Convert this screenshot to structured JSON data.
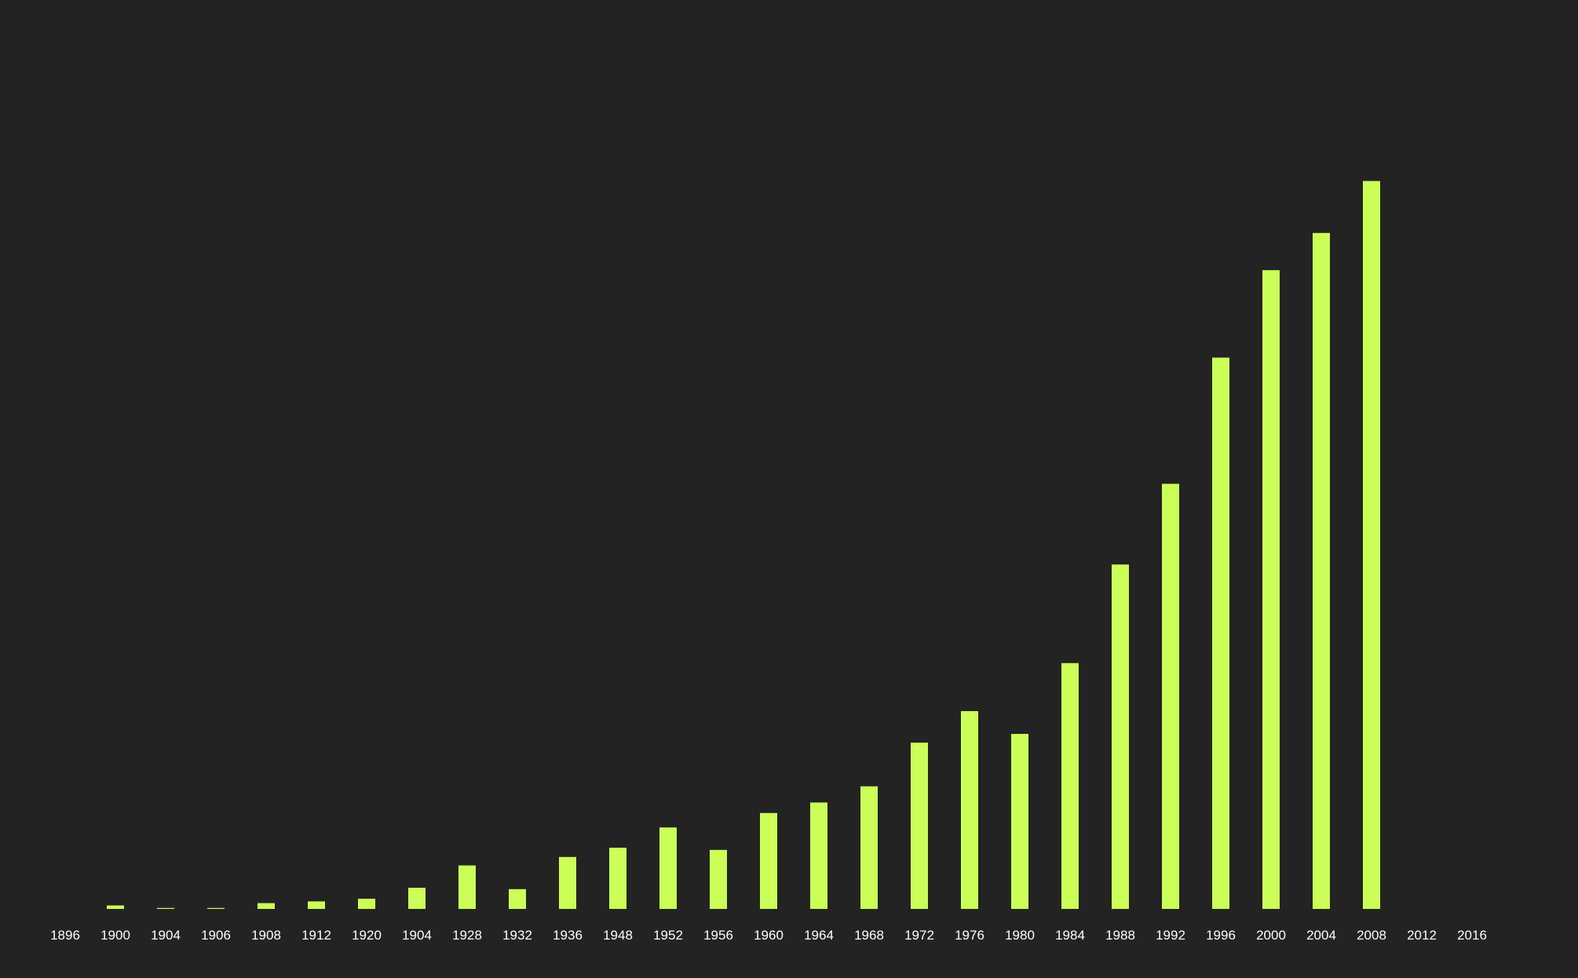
{
  "chart_data": {
    "type": "bar",
    "title": "",
    "xlabel": "",
    "ylabel": "",
    "categories": [
      "1896",
      "1900",
      "1904",
      "1906",
      "1908",
      "1912",
      "1920",
      "1904",
      "1928",
      "1932",
      "1936",
      "1948",
      "1952",
      "1956",
      "1960",
      "1964",
      "1968",
      "1972",
      "1976",
      "1980",
      "1984",
      "1988",
      "1992",
      "1996",
      "2000",
      "2004",
      "2008",
      "2012",
      "2016"
    ],
    "values": [
      0,
      22,
      6,
      6,
      37,
      48,
      65,
      135,
      277,
      126,
      331,
      390,
      519,
      376,
      611,
      678,
      781,
      1059,
      1260,
      1115,
      1566,
      2194,
      2708,
      3512,
      4069,
      4306,
      4637,
      null,
      null
    ],
    "ylim": [
      0,
      4800
    ],
    "grid": false,
    "legend": "none",
    "colors": {
      "background": "#232323",
      "bar": "#ccff55",
      "tick_text": "#ffffff"
    }
  }
}
